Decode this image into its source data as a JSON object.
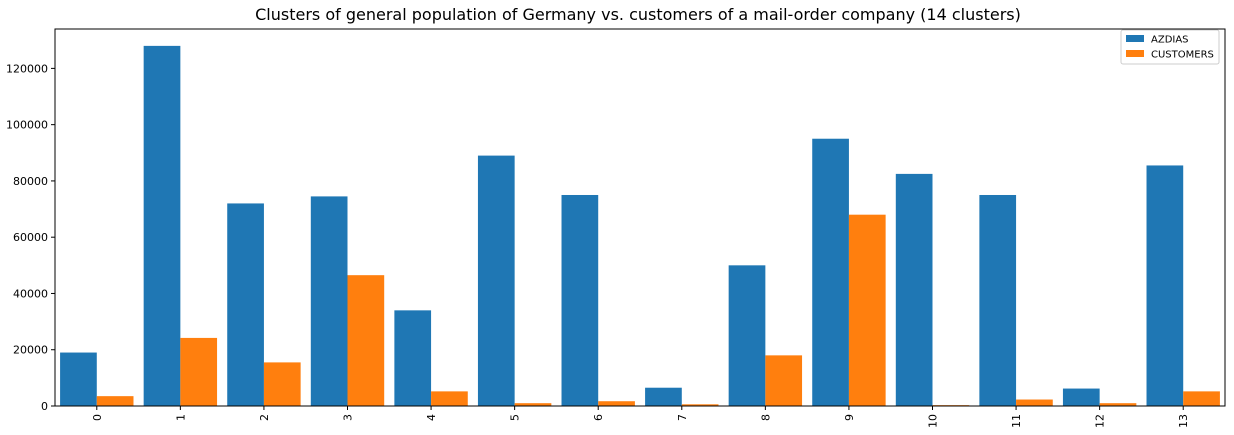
{
  "chart_data": {
    "type": "bar",
    "title": "Clusters of general population of Germany vs. customers of a mail-order company (14 clusters)",
    "xlabel": "",
    "ylabel": "",
    "categories": [
      "0",
      "1",
      "2",
      "3",
      "4",
      "5",
      "6",
      "7",
      "8",
      "9",
      "10",
      "11",
      "12",
      "13"
    ],
    "series": [
      {
        "name": "AZDIAS",
        "color": "#1f77b4",
        "values": [
          19000,
          128000,
          72000,
          74500,
          34000,
          89000,
          75000,
          6500,
          50000,
          95000,
          82500,
          75000,
          6200,
          85500
        ]
      },
      {
        "name": "CUSTOMERS",
        "color": "#ff7f0e",
        "values": [
          3500,
          24200,
          15500,
          46500,
          5200,
          1000,
          1700,
          600,
          18000,
          68000,
          300,
          2300,
          1000,
          5200
        ]
      }
    ],
    "ylim": [
      0,
      134000
    ],
    "yticks": [
      0,
      20000,
      40000,
      60000,
      80000,
      100000,
      120000
    ],
    "legend": "top-right",
    "grid": false
  }
}
